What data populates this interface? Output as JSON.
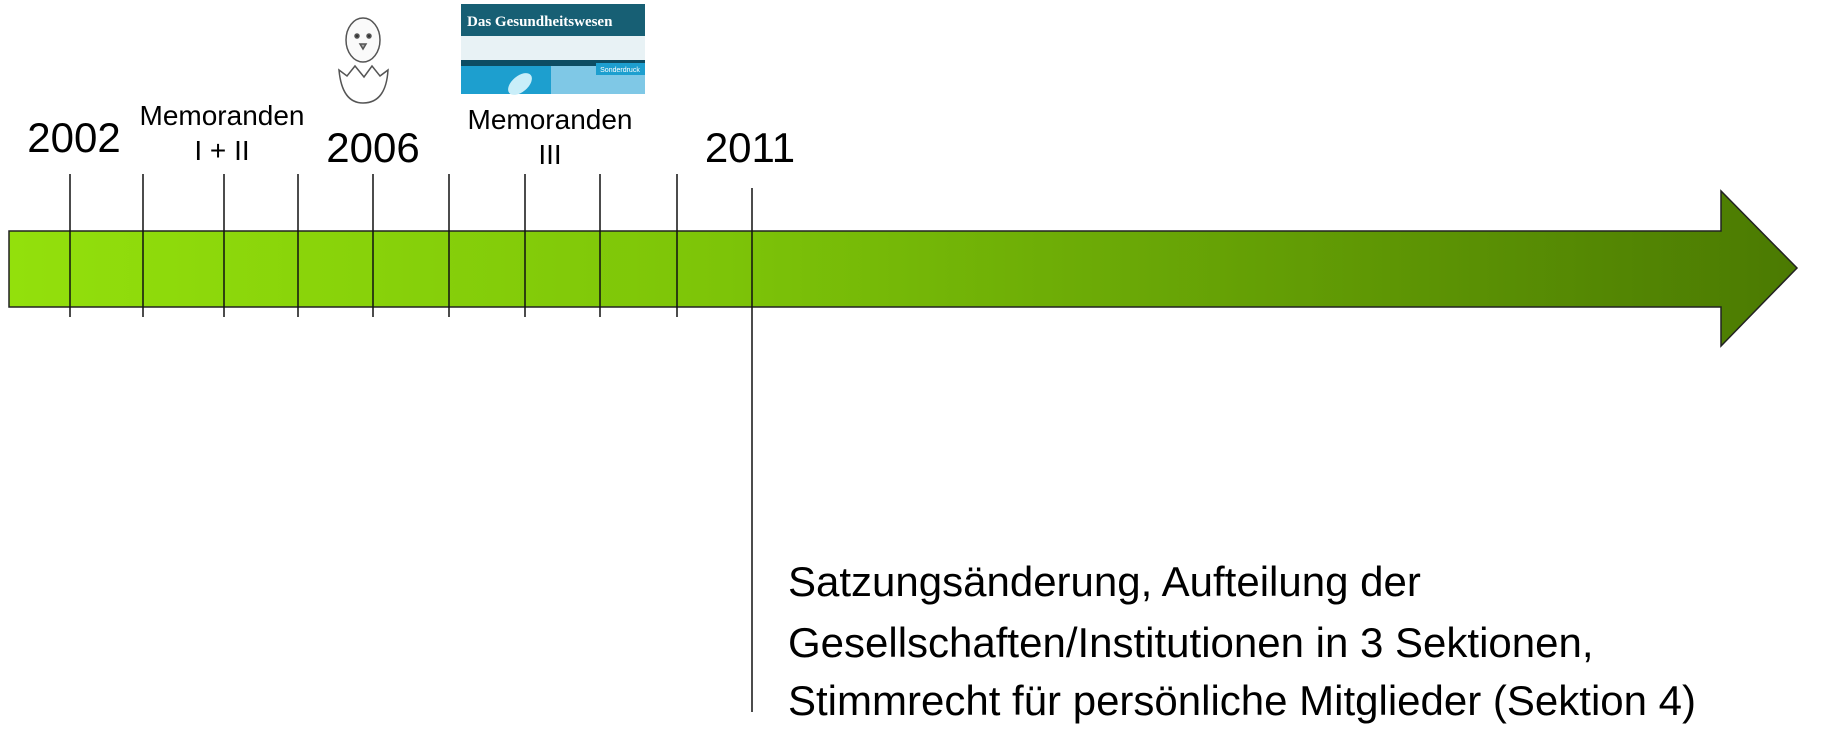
{
  "timeline": {
    "years": [
      "2002",
      "2006",
      "2011"
    ],
    "events": [
      {
        "lines": [
          "Memoranden",
          "I + II"
        ]
      },
      {
        "lines": [
          "Memoranden",
          "III"
        ]
      }
    ]
  },
  "cover": {
    "title": "Das Gesundheitswesen",
    "badge": "Sonderdruck"
  },
  "note": {
    "lines": [
      "Satzungsänderung, Aufteilung der",
      "Gesellschaften/Institutionen in 3 Sektionen,",
      "Stimmrecht für persönliche Mitglieder (Sektion 4)"
    ]
  }
}
